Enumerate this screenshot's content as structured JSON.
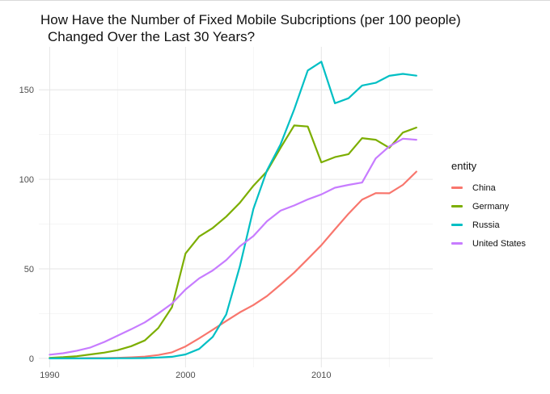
{
  "chart_data": {
    "type": "line",
    "title_line1": "How Have the Number of Fixed Mobile Subcriptions (per 100 people)",
    "title_line2": "Changed Over the Last 30 Years?",
    "xlabel": "",
    "ylabel": "",
    "xlim": [
      1989.2,
      2018.2
    ],
    "ylim": [
      -5,
      174
    ],
    "x_ticks": [
      1990,
      2000,
      2010
    ],
    "y_ticks": [
      0,
      50,
      100,
      150
    ],
    "grid": true,
    "legend_title": "entity",
    "legend_position": "right",
    "x": [
      1990,
      1991,
      1992,
      1993,
      1994,
      1995,
      1996,
      1997,
      1998,
      1999,
      2000,
      2001,
      2002,
      2003,
      2004,
      2005,
      2006,
      2007,
      2008,
      2009,
      2010,
      2011,
      2012,
      2013,
      2014,
      2015,
      2016,
      2017
    ],
    "series": [
      {
        "name": "China",
        "color": "#F8766D",
        "values": [
          0.0,
          0.1,
          0.1,
          0.2,
          0.2,
          0.3,
          0.6,
          1.0,
          1.9,
          3.4,
          6.7,
          11.2,
          16.0,
          20.9,
          25.7,
          29.8,
          34.8,
          41.2,
          47.9,
          55.5,
          63.2,
          72.1,
          80.8,
          88.7,
          92.3,
          92.2,
          96.9,
          104.3
        ]
      },
      {
        "name": "Germany",
        "color": "#7CAE00",
        "values": [
          0.3,
          0.7,
          1.2,
          2.2,
          3.2,
          4.6,
          6.8,
          10.0,
          17.0,
          28.6,
          58.6,
          68.1,
          72.8,
          79.2,
          86.9,
          96.4,
          104.5,
          117.6,
          130.1,
          129.5,
          109.5,
          112.4,
          114.1,
          123.0,
          122.1,
          117.6,
          126.1,
          128.9
        ]
      },
      {
        "name": "Russia",
        "color": "#00BFC4",
        "values": [
          0.0,
          0.0,
          0.0,
          0.0,
          0.0,
          0.1,
          0.1,
          0.2,
          0.5,
          0.9,
          2.2,
          5.3,
          12.0,
          24.6,
          51.3,
          83.5,
          105.0,
          119.6,
          139.0,
          160.8,
          165.7,
          142.5,
          145.3,
          152.4,
          153.9,
          157.8,
          158.9,
          157.9
        ]
      },
      {
        "name": "United States",
        "color": "#C77CFF",
        "values": [
          2.1,
          2.9,
          4.3,
          6.1,
          9.1,
          12.7,
          16.3,
          20.1,
          25.1,
          30.6,
          38.5,
          44.7,
          49.1,
          54.9,
          62.6,
          68.3,
          76.6,
          82.5,
          85.4,
          88.8,
          91.6,
          95.3,
          96.9,
          98.2,
          111.7,
          118.4,
          122.7,
          122.1
        ]
      }
    ]
  }
}
